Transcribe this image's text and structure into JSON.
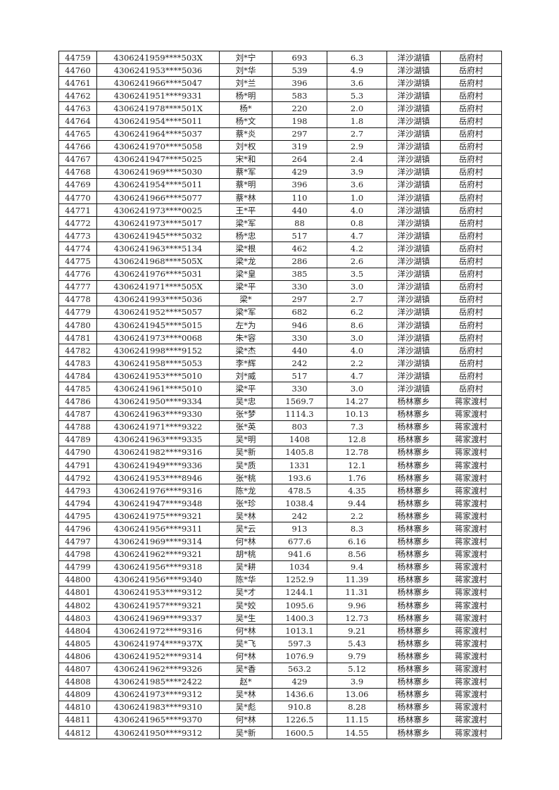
{
  "table": {
    "rows": [
      [
        "44759",
        "4306241959****503X",
        "刘*宁",
        "693",
        "6.3",
        "洋沙湖镇",
        "岳府村"
      ],
      [
        "44760",
        "4306241953****5036",
        "刘*华",
        "539",
        "4.9",
        "洋沙湖镇",
        "岳府村"
      ],
      [
        "44761",
        "4306241966****5047",
        "刘*兰",
        "396",
        "3.6",
        "洋沙湖镇",
        "岳府村"
      ],
      [
        "44762",
        "4306241951****9331",
        "杨*明",
        "583",
        "5.3",
        "洋沙湖镇",
        "岳府村"
      ],
      [
        "44763",
        "4306241978****501X",
        "杨*",
        "220",
        "2.0",
        "洋沙湖镇",
        "岳府村"
      ],
      [
        "44764",
        "4306241954****5011",
        "杨*文",
        "198",
        "1.8",
        "洋沙湖镇",
        "岳府村"
      ],
      [
        "44765",
        "4306241964****5037",
        "蔡*炎",
        "297",
        "2.7",
        "洋沙湖镇",
        "岳府村"
      ],
      [
        "44766",
        "4306241970****5058",
        "刘*权",
        "319",
        "2.9",
        "洋沙湖镇",
        "岳府村"
      ],
      [
        "44767",
        "4306241947****5025",
        "宋*和",
        "264",
        "2.4",
        "洋沙湖镇",
        "岳府村"
      ],
      [
        "44768",
        "4306241969****5030",
        "蔡*军",
        "429",
        "3.9",
        "洋沙湖镇",
        "岳府村"
      ],
      [
        "44769",
        "4306241954****5011",
        "蔡*明",
        "396",
        "3.6",
        "洋沙湖镇",
        "岳府村"
      ],
      [
        "44770",
        "4306241966****5077",
        "蔡*林",
        "110",
        "1.0",
        "洋沙湖镇",
        "岳府村"
      ],
      [
        "44771",
        "4306241973****0025",
        "王*平",
        "440",
        "4.0",
        "洋沙湖镇",
        "岳府村"
      ],
      [
        "44772",
        "4306241973****5017",
        "梁*军",
        "88",
        "0.8",
        "洋沙湖镇",
        "岳府村"
      ],
      [
        "44773",
        "4306241945****5032",
        "杨*忠",
        "517",
        "4.7",
        "洋沙湖镇",
        "岳府村"
      ],
      [
        "44774",
        "4306241963****5134",
        "梁*根",
        "462",
        "4.2",
        "洋沙湖镇",
        "岳府村"
      ],
      [
        "44775",
        "4306241968****505X",
        "梁*龙",
        "286",
        "2.6",
        "洋沙湖镇",
        "岳府村"
      ],
      [
        "44776",
        "4306241976****5031",
        "梁*皇",
        "385",
        "3.5",
        "洋沙湖镇",
        "岳府村"
      ],
      [
        "44777",
        "4306241971****505X",
        "梁*平",
        "330",
        "3.0",
        "洋沙湖镇",
        "岳府村"
      ],
      [
        "44778",
        "4306241993****5036",
        "梁*",
        "297",
        "2.7",
        "洋沙湖镇",
        "岳府村"
      ],
      [
        "44779",
        "4306241952****5057",
        "梁*军",
        "682",
        "6.2",
        "洋沙湖镇",
        "岳府村"
      ],
      [
        "44780",
        "4306241945****5015",
        "左*为",
        "946",
        "8.6",
        "洋沙湖镇",
        "岳府村"
      ],
      [
        "44781",
        "4306241973****0068",
        "朱*容",
        "330",
        "3.0",
        "洋沙湖镇",
        "岳府村"
      ],
      [
        "44782",
        "4306241998****9152",
        "梁*杰",
        "440",
        "4.0",
        "洋沙湖镇",
        "岳府村"
      ],
      [
        "44783",
        "4306241958****5053",
        "李*辉",
        "242",
        "2.2",
        "洋沙湖镇",
        "岳府村"
      ],
      [
        "44784",
        "4306241953****5010",
        "刘*威",
        "517",
        "4.7",
        "洋沙湖镇",
        "岳府村"
      ],
      [
        "44785",
        "4306241961****5010",
        "梁*平",
        "330",
        "3.0",
        "洋沙湖镇",
        "岳府村"
      ],
      [
        "44786",
        "4306241950****9334",
        "吴*忠",
        "1569.7",
        "14.27",
        "杨林寨乡",
        "蒋家渡村"
      ],
      [
        "44787",
        "4306241963****9330",
        "张*梦",
        "1114.3",
        "10.13",
        "杨林寨乡",
        "蒋家渡村"
      ],
      [
        "44788",
        "4306241971****9322",
        "张*英",
        "803",
        "7.3",
        "杨林寨乡",
        "蒋家渡村"
      ],
      [
        "44789",
        "4306241963****9335",
        "吴*明",
        "1408",
        "12.8",
        "杨林寨乡",
        "蒋家渡村"
      ],
      [
        "44790",
        "4306241982****9316",
        "吴*新",
        "1405.8",
        "12.78",
        "杨林寨乡",
        "蒋家渡村"
      ],
      [
        "44791",
        "4306241949****9336",
        "吴*质",
        "1331",
        "12.1",
        "杨林寨乡",
        "蒋家渡村"
      ],
      [
        "44792",
        "4306241953****8946",
        "张*桃",
        "193.6",
        "1.76",
        "杨林寨乡",
        "蒋家渡村"
      ],
      [
        "44793",
        "4306241976****9316",
        "陈*龙",
        "478.5",
        "4.35",
        "杨林寨乡",
        "蒋家渡村"
      ],
      [
        "44794",
        "4306241947****9348",
        "张*珍",
        "1038.4",
        "9.44",
        "杨林寨乡",
        "蒋家渡村"
      ],
      [
        "44795",
        "4306241975****9321",
        "吴*林",
        "242",
        "2.2",
        "杨林寨乡",
        "蒋家渡村"
      ],
      [
        "44796",
        "4306241956****9311",
        "吴*云",
        "913",
        "8.3",
        "杨林寨乡",
        "蒋家渡村"
      ],
      [
        "44797",
        "4306241969****9314",
        "何*林",
        "677.6",
        "6.16",
        "杨林寨乡",
        "蒋家渡村"
      ],
      [
        "44798",
        "4306241962****9321",
        "胡*桃",
        "941.6",
        "8.56",
        "杨林寨乡",
        "蒋家渡村"
      ],
      [
        "44799",
        "4306241956****9318",
        "吴*耕",
        "1034",
        "9.4",
        "杨林寨乡",
        "蒋家渡村"
      ],
      [
        "44800",
        "4306241956****9340",
        "陈*华",
        "1252.9",
        "11.39",
        "杨林寨乡",
        "蒋家渡村"
      ],
      [
        "44801",
        "4306241953****9312",
        "吴*才",
        "1244.1",
        "11.31",
        "杨林寨乡",
        "蒋家渡村"
      ],
      [
        "44802",
        "4306241957****9321",
        "吴*姣",
        "1095.6",
        "9.96",
        "杨林寨乡",
        "蒋家渡村"
      ],
      [
        "44803",
        "4306241969****9337",
        "吴*生",
        "1400.3",
        "12.73",
        "杨林寨乡",
        "蒋家渡村"
      ],
      [
        "44804",
        "4306241972****9316",
        "何*林",
        "1013.1",
        "9.21",
        "杨林寨乡",
        "蒋家渡村"
      ],
      [
        "44805",
        "4306241974****937X",
        "吴*飞",
        "597.3",
        "5.43",
        "杨林寨乡",
        "蒋家渡村"
      ],
      [
        "44806",
        "4306241952****9314",
        "何*林",
        "1076.9",
        "9.79",
        "杨林寨乡",
        "蒋家渡村"
      ],
      [
        "44807",
        "4306241962****9326",
        "吴*香",
        "563.2",
        "5.12",
        "杨林寨乡",
        "蒋家渡村"
      ],
      [
        "44808",
        "4306241985****2422",
        "赵*",
        "429",
        "3.9",
        "杨林寨乡",
        "蒋家渡村"
      ],
      [
        "44809",
        "4306241973****9312",
        "吴*林",
        "1436.6",
        "13.06",
        "杨林寨乡",
        "蒋家渡村"
      ],
      [
        "44810",
        "4306241983****9310",
        "吴*彪",
        "910.8",
        "8.28",
        "杨林寨乡",
        "蒋家渡村"
      ],
      [
        "44811",
        "4306241965****9370",
        "何*林",
        "1226.5",
        "11.15",
        "杨林寨乡",
        "蒋家渡村"
      ],
      [
        "44812",
        "4306241950****9312",
        "吴*新",
        "1600.5",
        "14.55",
        "杨林寨乡",
        "蒋家渡村"
      ]
    ]
  }
}
